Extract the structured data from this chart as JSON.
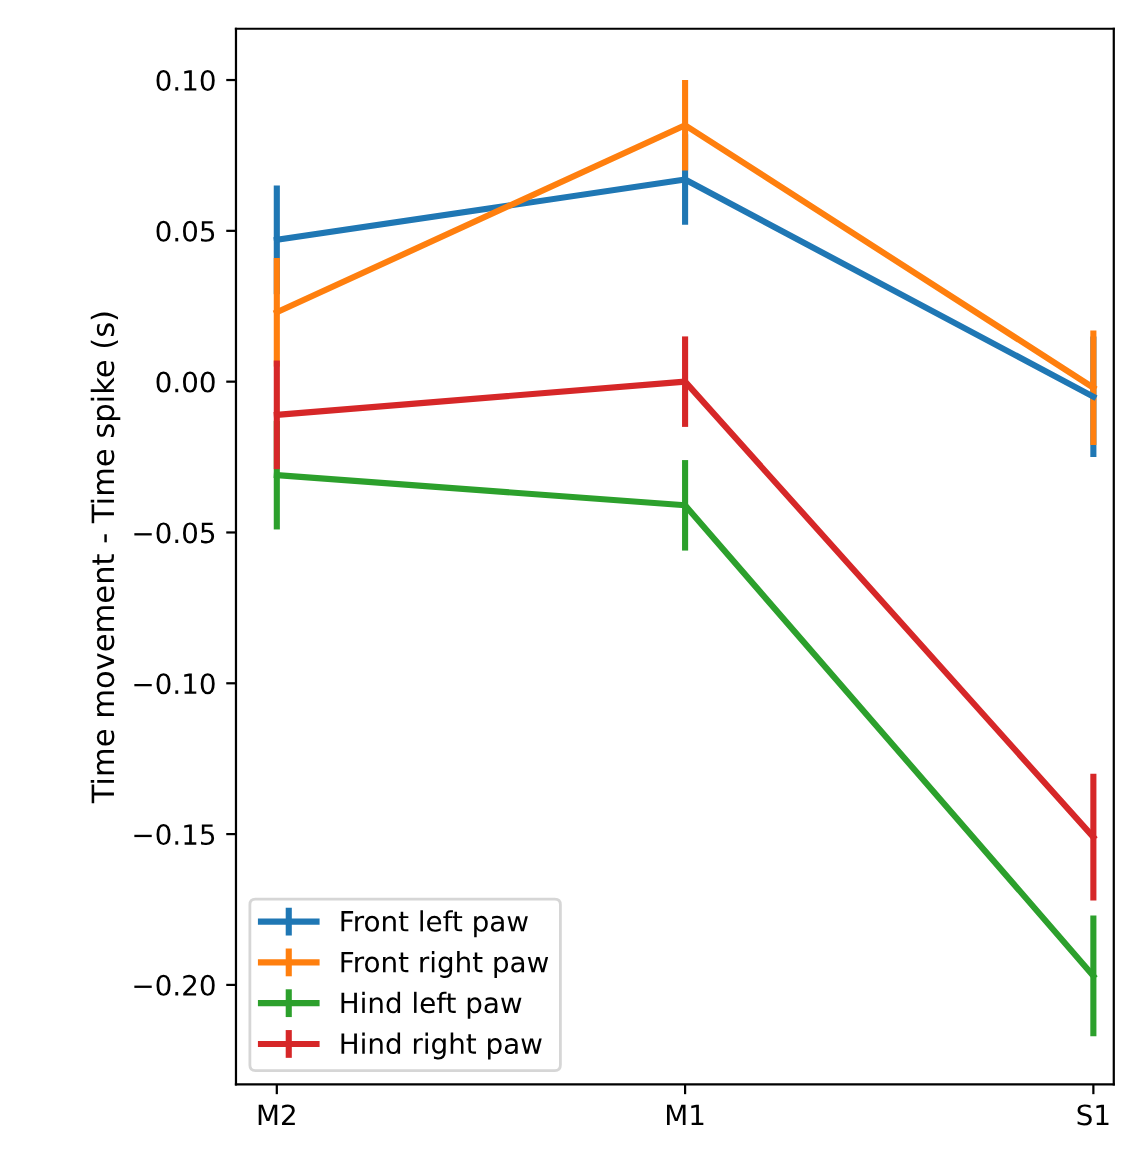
{
  "chart_data": {
    "type": "line",
    "ylabel": "Time movement - Time spike (s)",
    "categories": [
      "M2",
      "M1",
      "S1"
    ],
    "series": [
      {
        "name": "Front left paw",
        "color": "#1f77b4",
        "values": [
          0.047,
          0.067,
          -0.005
        ],
        "errors": [
          0.018,
          0.015,
          0.02
        ]
      },
      {
        "name": "Front right paw",
        "color": "#ff7f0e",
        "values": [
          0.023,
          0.085,
          -0.002
        ],
        "errors": [
          0.018,
          0.015,
          0.019
        ]
      },
      {
        "name": "Hind left paw",
        "color": "#2ca02c",
        "values": [
          -0.031,
          -0.041,
          -0.197
        ],
        "errors": [
          0.018,
          0.015,
          0.02
        ]
      },
      {
        "name": "Hind right paw",
        "color": "#d62728",
        "values": [
          -0.011,
          0.0,
          -0.151
        ],
        "errors": [
          0.018,
          0.015,
          0.021
        ]
      }
    ],
    "ylim": [
      -0.233,
      0.117
    ],
    "yticks": [
      {
        "value": -0.2,
        "label": "−0.20"
      },
      {
        "value": -0.15,
        "label": "−0.15"
      },
      {
        "value": -0.1,
        "label": "−0.10"
      },
      {
        "value": -0.05,
        "label": "−0.05"
      },
      {
        "value": 0.0,
        "label": "0.00"
      },
      {
        "value": 0.05,
        "label": "0.05"
      },
      {
        "value": 0.1,
        "label": "0.10"
      }
    ],
    "legend": "lower left",
    "grid": false
  }
}
